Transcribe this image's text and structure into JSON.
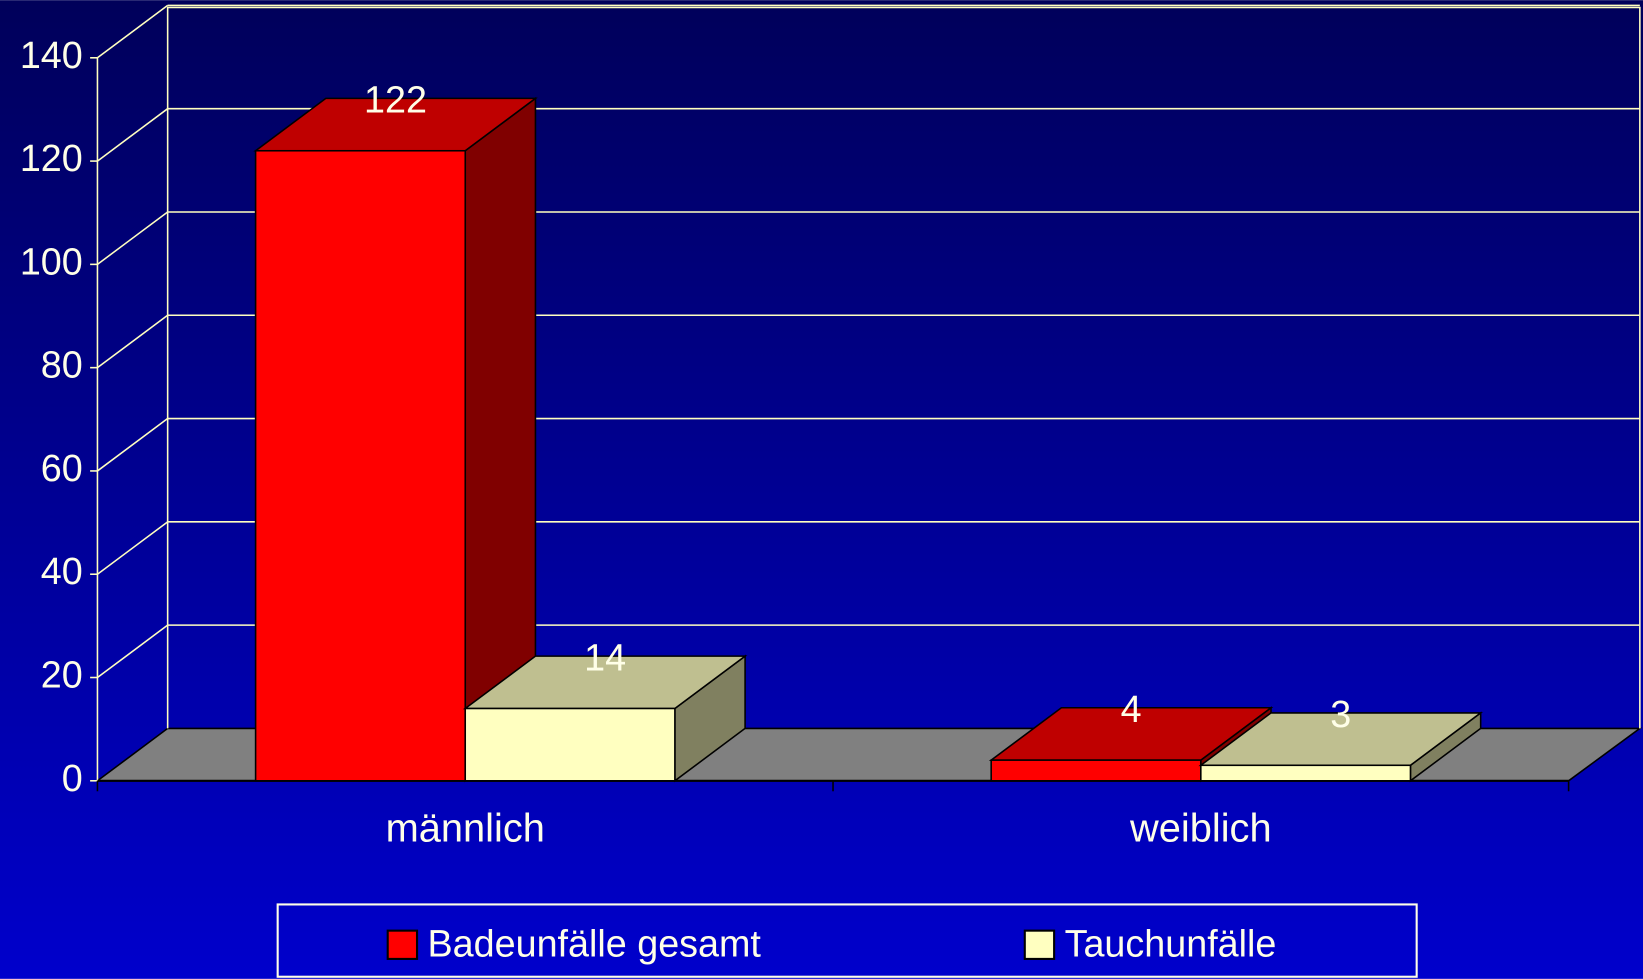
{
  "chart_data": {
    "type": "bar3d",
    "categories": [
      "männlich",
      "weiblich"
    ],
    "series": [
      {
        "name": "Badeunfälle gesamt",
        "color": "#ff0000",
        "values": [
          122,
          4
        ]
      },
      {
        "name": "Tauchunfälle",
        "color": "#ffffc0",
        "values": [
          14,
          3
        ]
      }
    ],
    "ylim": [
      0,
      140
    ],
    "yticks": [
      0,
      20,
      40,
      60,
      80,
      100,
      120,
      140
    ],
    "grid": true,
    "legend": "bottom"
  }
}
